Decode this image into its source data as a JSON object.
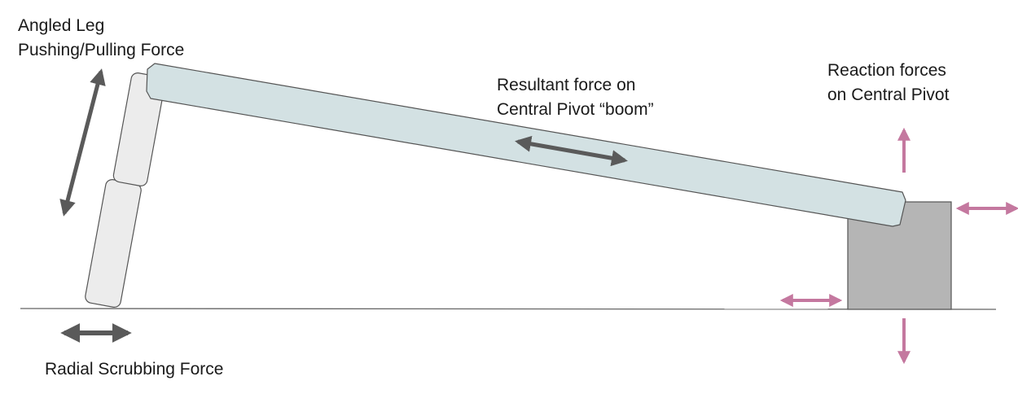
{
  "labels": {
    "angled_leg": [
      "Angled Leg",
      "Pushing/Pulling Force"
    ],
    "resultant": [
      "Resultant force on",
      "Central Pivot “boom”"
    ],
    "reaction": [
      "Reaction forces",
      "on Central Pivot"
    ],
    "radial": "Radial Scrubbing Force"
  },
  "colors": {
    "boom_fill": "#d3e1e3",
    "leg_fill": "#ececec",
    "pivot_fill": "#b5b5b5",
    "outline": "#555555",
    "dark_arrow": "#5a5a5a",
    "reaction_arrow": "#c4789f",
    "ground": "#666666"
  }
}
